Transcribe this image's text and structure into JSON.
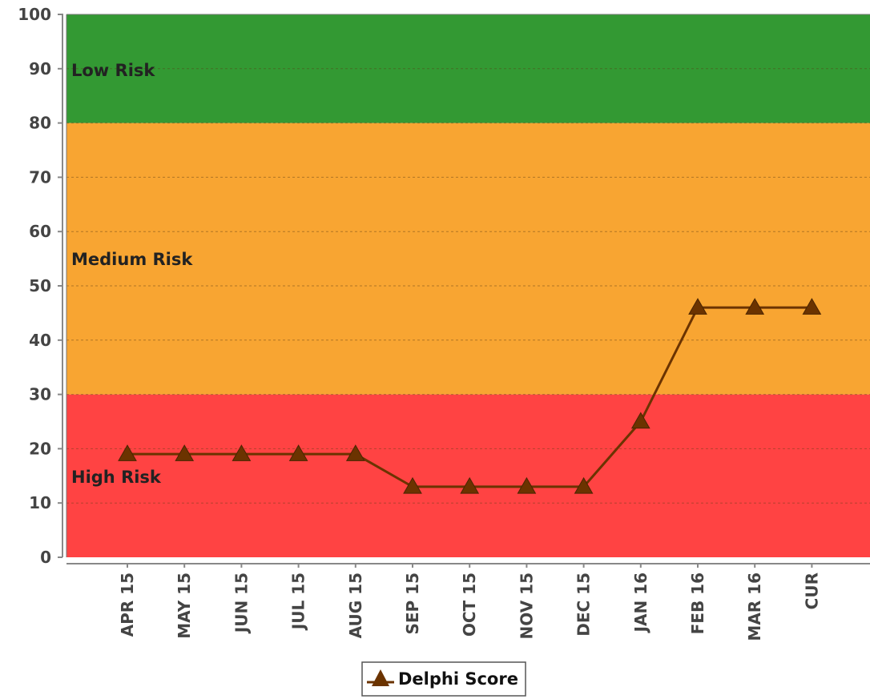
{
  "chart_data": {
    "type": "line",
    "title": "",
    "xlabel": "",
    "ylabel": "",
    "ylim": [
      0,
      100
    ],
    "yticks": [
      0,
      10,
      20,
      30,
      40,
      50,
      60,
      70,
      80,
      90,
      100
    ],
    "grid": true,
    "legend_position": "bottom-center",
    "categories": [
      "APR 15",
      "MAY 15",
      "JUN 15",
      "JUL 15",
      "AUG 15",
      "SEP 15",
      "OCT 15",
      "NOV 15",
      "DEC 15",
      "JAN 16",
      "FEB 16",
      "MAR 16",
      "CUR"
    ],
    "series": [
      {
        "name": "Delphi Score",
        "color": "#6b3300",
        "marker": "triangle",
        "values": [
          19,
          19,
          19,
          19,
          19,
          13,
          13,
          13,
          13,
          25,
          46,
          46,
          46
        ]
      }
    ],
    "bands": [
      {
        "label": "High Risk",
        "from": 0,
        "to": 30,
        "color": "#ff4343"
      },
      {
        "label": "Medium Risk",
        "from": 30,
        "to": 80,
        "color": "#f8a532"
      },
      {
        "label": "Low Risk",
        "from": 80,
        "to": 100,
        "color": "#339933"
      }
    ]
  }
}
